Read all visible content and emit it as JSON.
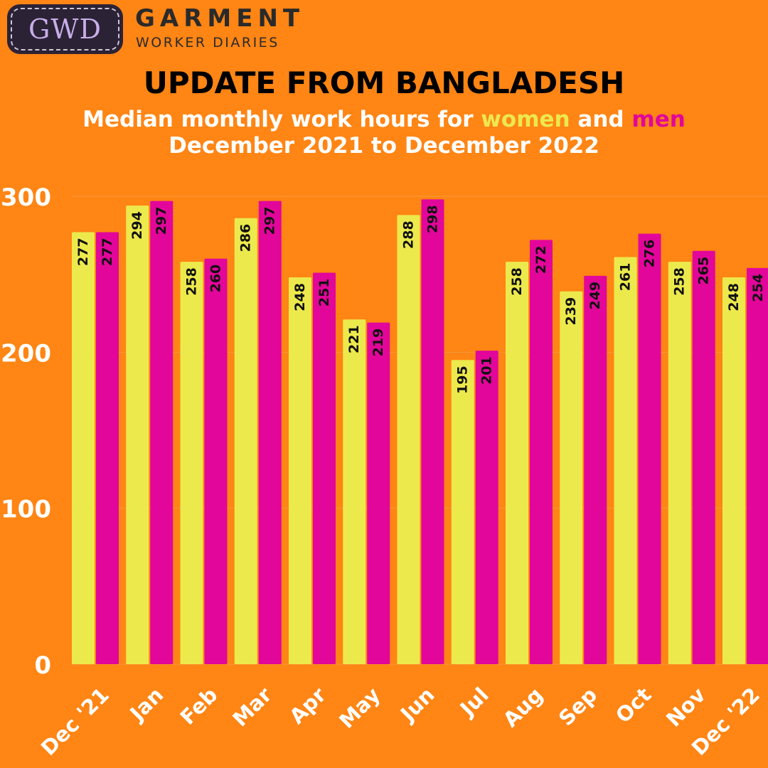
{
  "header": {
    "logo_mark": "GWD",
    "brand_name": "GARMENT",
    "brand_sub": "WORKER DIARIES"
  },
  "title": "UPDATE FROM BANGLADESH",
  "subtitle": {
    "prefix": "Median monthly work hours for ",
    "women_word": "women",
    "connector": " and ",
    "men_word": "men",
    "line2": "December 2021 to December 2022"
  },
  "colors": {
    "background": "#FF8514",
    "women": "#ECE94D",
    "men": "#E2069A",
    "tick_text": "#ffffff",
    "bar_label": "#111111"
  },
  "chart_data": {
    "type": "bar",
    "categories": [
      "Dec '21",
      "Jan",
      "Feb",
      "Mar",
      "Apr",
      "May",
      "Jun",
      "Jul",
      "Aug",
      "Sep",
      "Oct",
      "Nov",
      "Dec '22"
    ],
    "series": [
      {
        "name": "women",
        "values": [
          277,
          294,
          258,
          286,
          248,
          221,
          288,
          195,
          258,
          239,
          261,
          258,
          248
        ]
      },
      {
        "name": "men",
        "values": [
          277,
          297,
          260,
          297,
          251,
          219,
          298,
          201,
          272,
          249,
          276,
          265,
          254
        ]
      }
    ],
    "yticks": [
      0,
      100,
      200,
      300
    ],
    "ylim": [
      0,
      300
    ],
    "grid": true,
    "legend": "none"
  }
}
